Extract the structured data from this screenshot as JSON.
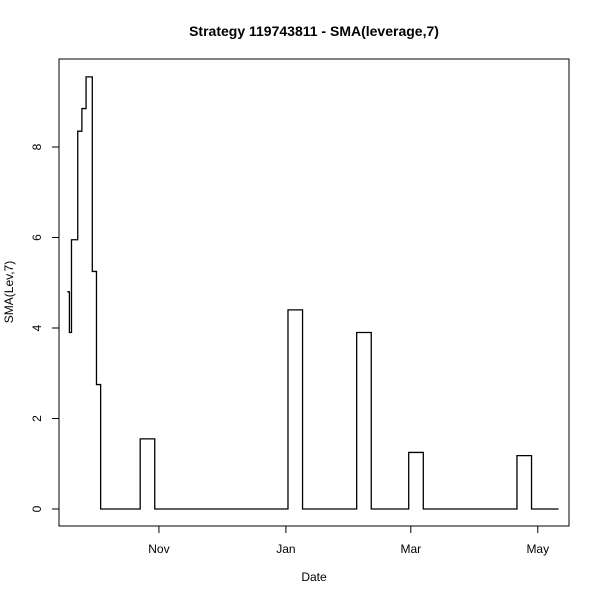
{
  "chart_data": {
    "type": "line",
    "step": true,
    "title": "Strategy 119743811 - SMA(leverage,7)",
    "xlabel": "Date",
    "ylabel": "SMA(Lev,7)",
    "x_ticks": [
      {
        "label": "Nov",
        "date": "2015-11-01"
      },
      {
        "label": "Jan",
        "date": "2016-01-01"
      },
      {
        "label": "Mar",
        "date": "2016-03-01"
      },
      {
        "label": "May",
        "date": "2016-05-01"
      }
    ],
    "y_ticks": [
      0,
      2,
      4,
      6,
      8
    ],
    "ylim": [
      0,
      9.6
    ],
    "xlim": [
      "2015-09-14",
      "2016-05-16"
    ],
    "series": [
      {
        "points": [
          {
            "x": "2015-09-18",
            "y": 4.8
          },
          {
            "x": "2015-09-19",
            "y": 3.9
          },
          {
            "x": "2015-09-20",
            "y": 5.95
          },
          {
            "x": "2015-09-23",
            "y": 8.35
          },
          {
            "x": "2015-09-25",
            "y": 8.85
          },
          {
            "x": "2015-09-27",
            "y": 9.55
          },
          {
            "x": "2015-09-30",
            "y": 5.25
          },
          {
            "x": "2015-10-02",
            "y": 2.75
          },
          {
            "x": "2015-10-04",
            "y": 0
          },
          {
            "x": "2015-10-23",
            "y": 1.55
          },
          {
            "x": "2015-10-30",
            "y": 0
          },
          {
            "x": "2016-01-02",
            "y": 4.4
          },
          {
            "x": "2016-01-09",
            "y": 0
          },
          {
            "x": "2016-02-04",
            "y": 3.9
          },
          {
            "x": "2016-02-11",
            "y": 0
          },
          {
            "x": "2016-02-29",
            "y": 1.25
          },
          {
            "x": "2016-03-07",
            "y": 0
          },
          {
            "x": "2016-04-21",
            "y": 1.18
          },
          {
            "x": "2016-04-28",
            "y": 0
          },
          {
            "x": "2016-05-11",
            "y": 0
          }
        ]
      }
    ]
  }
}
